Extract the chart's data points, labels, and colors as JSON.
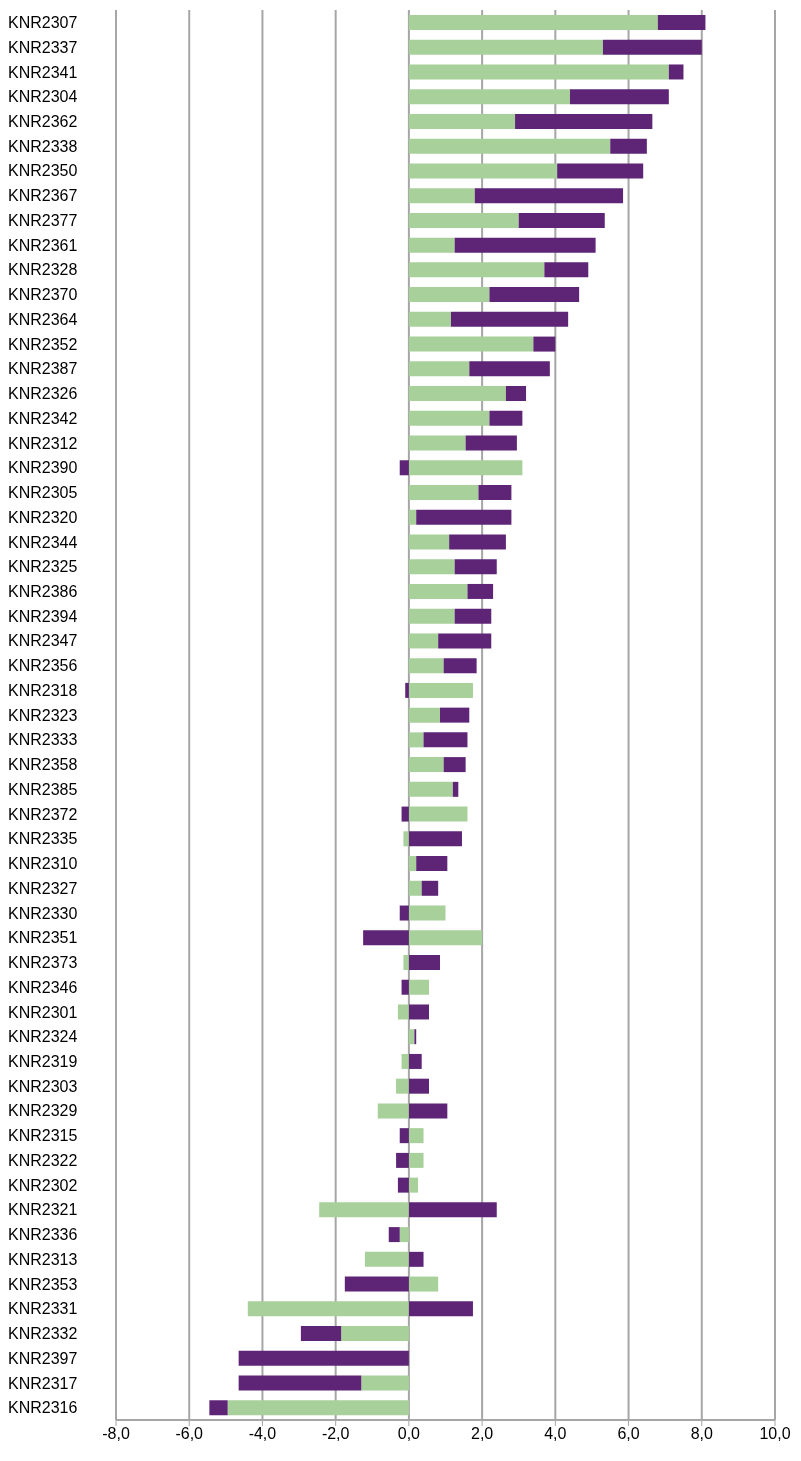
{
  "chart_data": {
    "type": "bar",
    "orientation": "horizontal",
    "stacked": true,
    "categories": [
      "KNR2307",
      "KNR2337",
      "KNR2341",
      "KNR2304",
      "KNR2362",
      "KNR2338",
      "KNR2350",
      "KNR2367",
      "KNR2377",
      "KNR2361",
      "KNR2328",
      "KNR2370",
      "KNR2364",
      "KNR2352",
      "KNR2387",
      "KNR2326",
      "KNR2342",
      "KNR2312",
      "KNR2390",
      "KNR2305",
      "KNR2320",
      "KNR2344",
      "KNR2325",
      "KNR2386",
      "KNR2394",
      "KNR2347",
      "KNR2356",
      "KNR2318",
      "KNR2323",
      "KNR2333",
      "KNR2358",
      "KNR2385",
      "KNR2372",
      "KNR2335",
      "KNR2310",
      "KNR2327",
      "KNR2330",
      "KNR2351",
      "KNR2373",
      "KNR2346",
      "KNR2301",
      "KNR2324",
      "KNR2319",
      "KNR2303",
      "KNR2329",
      "KNR2315",
      "KNR2322",
      "KNR2302",
      "KNR2321",
      "KNR2336",
      "KNR2313",
      "KNR2353",
      "KNR2331",
      "KNR2332",
      "KNR2397",
      "KNR2317",
      "KNR2316"
    ],
    "series": [
      {
        "color": "#a8d09a",
        "values": [
          6.8,
          5.3,
          7.1,
          4.4,
          2.9,
          5.5,
          4.05,
          1.8,
          3.0,
          1.25,
          3.7,
          2.2,
          1.15,
          3.4,
          1.65,
          2.65,
          2.2,
          1.55,
          3.1,
          1.9,
          0.2,
          1.1,
          1.25,
          1.6,
          1.25,
          0.8,
          0.95,
          1.75,
          0.85,
          0.4,
          0.95,
          1.2,
          1.6,
          -0.15,
          0.2,
          0.35,
          1.0,
          2.0,
          -0.15,
          0.55,
          -0.3,
          0.15,
          -0.2,
          -0.35,
          -0.85,
          0.4,
          0.4,
          0.25,
          -2.45,
          -0.25,
          -1.2,
          0.8,
          -4.4,
          -1.85,
          0,
          -1.3,
          -4.95
        ]
      },
      {
        "color": "#5e2577",
        "values": [
          1.3,
          2.7,
          0.4,
          2.7,
          3.75,
          1.0,
          2.35,
          4.05,
          2.35,
          3.85,
          1.2,
          2.45,
          3.2,
          0.6,
          2.2,
          0.55,
          0.9,
          1.4,
          -0.25,
          0.9,
          2.6,
          1.55,
          1.15,
          0.7,
          1.0,
          1.45,
          0.9,
          -0.1,
          0.8,
          1.2,
          0.6,
          0.15,
          -0.2,
          1.45,
          0.85,
          0.45,
          -0.25,
          -1.25,
          0.85,
          -0.2,
          0.55,
          0.05,
          0.35,
          0.55,
          1.05,
          -0.25,
          -0.35,
          -0.3,
          2.4,
          -0.3,
          0.4,
          -1.75,
          1.75,
          -1.1,
          -4.65,
          -3.35,
          -0.5
        ]
      }
    ],
    "xlim": [
      -8,
      10
    ],
    "xticks": [
      {
        "value": -8,
        "label": "-8,0"
      },
      {
        "value": -6,
        "label": "-6,0"
      },
      {
        "value": -4,
        "label": "-4,0"
      },
      {
        "value": -2,
        "label": "-2,0"
      },
      {
        "value": 0,
        "label": "0,0"
      },
      {
        "value": 2,
        "label": "2,0"
      },
      {
        "value": 4,
        "label": "4,0"
      },
      {
        "value": 6,
        "label": "6,0"
      },
      {
        "value": 8,
        "label": "8,0"
      },
      {
        "value": 10,
        "label": "10,0"
      }
    ],
    "grid": "x"
  }
}
